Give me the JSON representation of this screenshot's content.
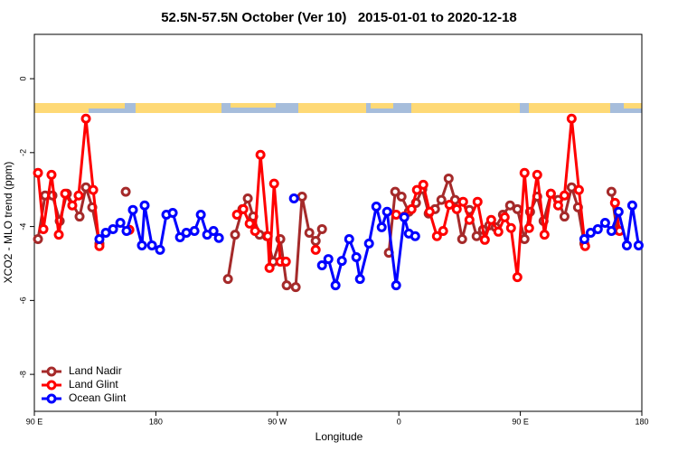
{
  "chart_data": {
    "type": "line",
    "title": "52.5N-57.5N October (Ver 10)   2015-01-01 to 2020-12-18",
    "xlabel": "Longitude",
    "ylabel": "XCO2 - MLO trend (ppm)",
    "xlim": [
      90,
      540
    ],
    "ylim": [
      -9.0,
      1.2
    ],
    "xticks": [
      {
        "value": 90,
        "label": "90 E"
      },
      {
        "value": 180,
        "label": "180"
      },
      {
        "value": 270,
        "label": "90 W"
      },
      {
        "value": 360,
        "label": "0"
      },
      {
        "value": 450,
        "label": "90 E"
      },
      {
        "value": 540,
        "label": "180"
      }
    ],
    "yticks": [
      0,
      -2,
      -4,
      -6,
      -8
    ],
    "legend": "bottomleft",
    "series": [
      {
        "name": "Land Nadir",
        "color": "#a52a2a",
        "x": [
          92.7,
          98.0,
          103.4,
          108.8,
          114.1,
          123.5,
          128.2,
          132.9,
          138.2,
          null,
          157.7,
          null,
          233.4,
          238.7,
          244.1,
          248.1,
          252.1,
          256.8,
          262.2,
          266.9,
          272.2,
          276.9,
          283.6,
          288.3,
          293.7,
          298.4,
          303.1,
          null,
          352.6,
          357.3,
          362.0,
          367.4,
          372.7,
          377.4,
          382.1,
          386.8,
          391.5,
          396.9,
          401.6,
          406.9,
          412.3,
          417.6,
          422.3,
          427.0,
          431.7,
          437.1,
          442.4,
          447.8,
          453.1,
          457.2,
          462.5,
          467.2,
          472.6,
          478.0,
          482.7,
          488.0,
          492.7,
          497.4,
          null,
          517.5,
          521.5
        ],
        "values": [
          -4.34,
          -3.16,
          -3.16,
          -3.85,
          -3.11,
          -3.73,
          -2.94,
          -3.48,
          -4.46,
          null,
          -3.06,
          null,
          -5.42,
          -4.22,
          -3.53,
          -3.24,
          -3.73,
          -4.22,
          -4.26,
          -4.95,
          -4.34,
          -5.59,
          -5.64,
          -3.19,
          -4.17,
          -4.39,
          -4.07,
          null,
          -4.71,
          -3.06,
          -3.19,
          -3.6,
          -3.36,
          -2.99,
          -3.65,
          -3.53,
          -3.28,
          -2.7,
          -3.28,
          -4.34,
          -3.55,
          -4.26,
          -4.09,
          -3.97,
          -4.02,
          -3.68,
          -3.43,
          -3.53,
          -4.34,
          -3.6,
          -3.19,
          -3.85,
          -3.11,
          -3.28,
          -3.73,
          -2.94,
          -3.48,
          -4.46,
          null,
          -3.06,
          -4.09
        ]
      },
      {
        "name": "Land Glint",
        "color": "#ff0000",
        "x": [
          92.7,
          96.7,
          102.7,
          108.1,
          112.8,
          118.1,
          122.8,
          128.2,
          133.6,
          138.2,
          null,
          160.4,
          null,
          240.1,
          244.8,
          249.5,
          253.5,
          257.5,
          262.9,
          264.2,
          267.6,
          272.2,
          276.3,
          null,
          298.4,
          null,
          358.0,
          364.0,
          369.4,
          373.4,
          378.1,
          382.8,
          388.2,
          392.8,
          397.5,
          402.9,
          407.6,
          412.3,
          418.3,
          423.7,
          428.4,
          433.7,
          438.4,
          443.1,
          447.8,
          453.1,
          456.5,
          462.5,
          467.9,
          472.6,
          478.0,
          482.7,
          488.0,
          493.4,
          498.0,
          null,
          520.1,
          523.5
        ],
        "values": [
          -2.55,
          -4.07,
          -2.6,
          -4.22,
          -3.11,
          -3.43,
          -3.16,
          -1.08,
          -3.01,
          -4.53,
          null,
          -4.09,
          null,
          -3.68,
          -3.53,
          -3.92,
          -4.12,
          -2.06,
          -4.26,
          -5.12,
          -2.84,
          -4.95,
          -4.95,
          null,
          -4.63,
          null,
          -3.68,
          -3.73,
          -3.53,
          -3.01,
          -2.87,
          -3.6,
          -4.26,
          -4.12,
          -3.41,
          -3.53,
          -3.33,
          -3.82,
          -3.33,
          -4.36,
          -3.82,
          -4.14,
          -3.75,
          -4.04,
          -5.37,
          -2.55,
          -4.04,
          -2.6,
          -4.22,
          -3.11,
          -3.43,
          -3.16,
          -1.08,
          -3.01,
          -4.53,
          null,
          -3.36,
          -4.12
        ]
      },
      {
        "name": "Ocean Glint",
        "color": "#0000ff",
        "x": [
          138.2,
          142.9,
          148.3,
          153.7,
          158.3,
          163.0,
          169.7,
          171.7,
          177.1,
          183.1,
          187.8,
          192.5,
          197.9,
          202.6,
          208.6,
          213.3,
          218.0,
          222.7,
          226.7,
          null,
          282.3,
          null,
          303.1,
          307.8,
          313.1,
          317.8,
          323.2,
          328.5,
          331.2,
          337.9,
          343.3,
          347.3,
          351.3,
          358.0,
          364.0,
          367.4,
          372.1,
          null,
          497.4,
          502.1,
          507.4,
          512.8,
          517.5,
          522.8,
          528.9,
          532.9,
          537.6
        ],
        "values": [
          -4.34,
          -4.17,
          -4.07,
          -3.9,
          -4.12,
          -3.55,
          -4.51,
          -3.43,
          -4.51,
          -4.63,
          -3.68,
          -3.63,
          -4.29,
          -4.17,
          -4.12,
          -3.68,
          -4.22,
          -4.12,
          -4.31,
          null,
          -3.24,
          null,
          -5.05,
          -4.88,
          -5.59,
          -4.93,
          -4.34,
          -4.83,
          -5.42,
          -4.46,
          -3.46,
          -4.02,
          -3.6,
          -5.59,
          -3.75,
          -4.19,
          -4.26,
          null,
          -4.34,
          -4.17,
          -4.07,
          -3.9,
          -4.12,
          -3.6,
          -4.51,
          -3.43,
          -4.51
        ]
      }
    ]
  }
}
